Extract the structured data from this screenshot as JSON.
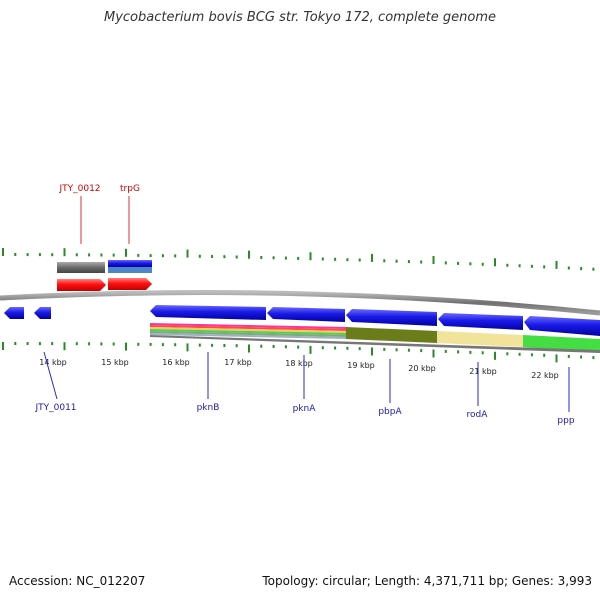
{
  "title": "Mycobacterium bovis BCG str. Tokyo 172, complete genome",
  "footer": {
    "accession": "Accession: NC_012207",
    "stats": "Topology: circular; Length: 4,371,711 bp; Genes: 3,993"
  },
  "colors": {
    "forward_gene": "#ff1a1a",
    "reverse_gene": "#1414e6",
    "backbone": "#808080",
    "tick": "#2a8a2a",
    "label_top": "#cc0000",
    "label_bottom": "#1a1aaa"
  },
  "ticks": [
    {
      "label": "14 kbp"
    },
    {
      "label": "15 kbp"
    },
    {
      "label": "16 kbp"
    },
    {
      "label": "17 kbp"
    },
    {
      "label": "18 kbp"
    },
    {
      "label": "19 kbp"
    },
    {
      "label": "20 kbp"
    },
    {
      "label": "21 kbp"
    },
    {
      "label": "22 kbp"
    }
  ],
  "top_labels": [
    {
      "text": "JTY_0012"
    },
    {
      "text": "trpG"
    }
  ],
  "bottom_labels": [
    {
      "text": "JTY_0011"
    },
    {
      "text": "pknB"
    },
    {
      "text": "pknA"
    },
    {
      "text": "pbpA"
    },
    {
      "text": "rodA"
    },
    {
      "text": "ppp"
    }
  ]
}
